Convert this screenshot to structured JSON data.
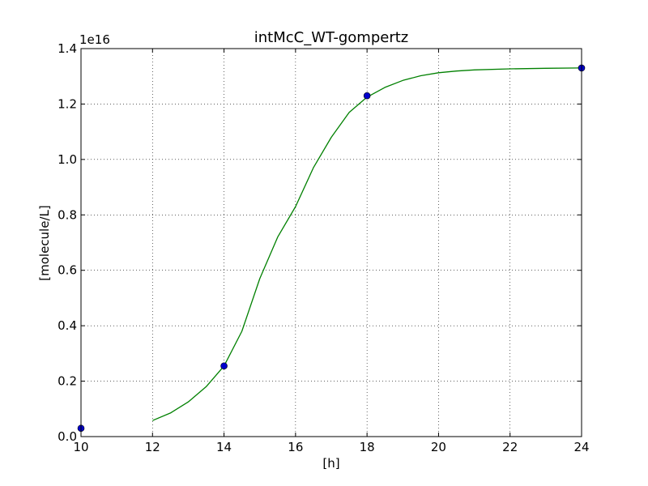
{
  "chart_data": {
    "type": "line",
    "title": "intMcC_WT-gompertz",
    "xlabel": "[h]",
    "ylabel": "[molecule/L]",
    "y_scale_label": "1e16",
    "xlim": [
      10,
      24
    ],
    "ylim": [
      0.0,
      1.4
    ],
    "x_ticks": [
      10,
      12,
      14,
      16,
      18,
      20,
      22,
      24
    ],
    "y_ticks": [
      0.0,
      0.2,
      0.4,
      0.6,
      0.8,
      1.0,
      1.2,
      1.4
    ],
    "x_tick_labels": [
      "10",
      "12",
      "14",
      "16",
      "18",
      "20",
      "22",
      "24"
    ],
    "y_tick_labels": [
      "0.0",
      "0.2",
      "0.4",
      "0.6",
      "0.8",
      "1.0",
      "1.2",
      "1.4"
    ],
    "grid": true,
    "series": [
      {
        "kind": "scatter",
        "color": "#0000cc",
        "x": [
          10,
          14,
          18,
          24
        ],
        "y": [
          0.03,
          0.255,
          1.23,
          1.33
        ]
      },
      {
        "kind": "line",
        "color": "#008000",
        "x": [
          12.0,
          12.5,
          13.0,
          13.5,
          14.0,
          14.5,
          15.0,
          15.5,
          16.0,
          16.5,
          17.0,
          17.5,
          18.0,
          18.5,
          19.0,
          19.5,
          20.0,
          20.5,
          21.0,
          22.0,
          23.0,
          24.0
        ],
        "y": [
          0.058,
          0.085,
          0.125,
          0.18,
          0.255,
          0.38,
          0.57,
          0.72,
          0.83,
          0.97,
          1.08,
          1.17,
          1.225,
          1.26,
          1.285,
          1.302,
          1.313,
          1.319,
          1.323,
          1.327,
          1.329,
          1.33
        ]
      }
    ]
  }
}
